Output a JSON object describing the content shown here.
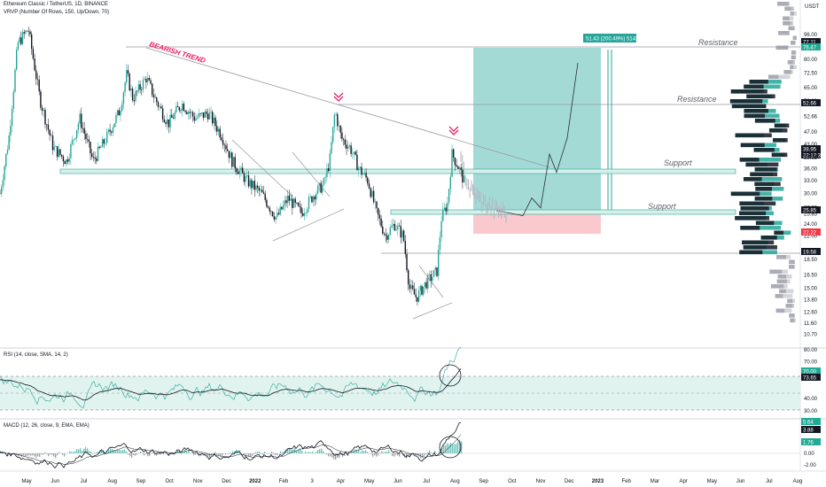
{
  "header": {
    "symbol": "Ethereum Classic / TetherUS, 1D, BINANCE",
    "vrvp": "VRVP (Number Of Rows, 150, Up/Down, 70)",
    "rsi": "RSI (14, close, SMA, 14, 2)",
    "macd": "MACD (12, 26, close, 9, EMA, EMA)",
    "currency": "USDT"
  },
  "chart_data": [
    {
      "type": "candlestick",
      "pane": "price",
      "scale": "log",
      "ylim": [
        10.0,
        110
      ],
      "x_ticks": [
        "May",
        "Jun",
        "Jul",
        "Aug",
        "Sep",
        "Oct",
        "Nov",
        "Dec",
        "2022",
        "Feb",
        "3",
        "Apr",
        "May",
        "Jun",
        "Jul",
        "Aug",
        "Sep",
        "Oct",
        "Nov",
        "Dec",
        "2023",
        "Feb",
        "Mar",
        "Apr",
        "May",
        "Jun",
        "Jul",
        "Aug"
      ],
      "y_ticks": [
        "96.00",
        "88.00",
        "80.00",
        "72.50",
        "65.00",
        "59.00",
        "52.66",
        "47.00",
        "43.00",
        "38.95",
        "36.00",
        "33.00",
        "30.00",
        "27.00",
        "25.85",
        "24.00",
        "22.00",
        "19.58",
        "18.50",
        "16.50",
        "15.00",
        "13.80",
        "12.60",
        "11.60",
        "10.70"
      ],
      "series": [
        {
          "values": [
            [
              0,
              30
            ],
            [
              10,
              45
            ],
            [
              20,
              90
            ],
            [
              32,
              100
            ],
            [
              45,
              60
            ],
            [
              60,
              42
            ],
            [
              75,
              38
            ],
            [
              90,
              52
            ],
            [
              105,
              38
            ],
            [
              120,
              45
            ],
            [
              135,
              55
            ],
            [
              143,
              72
            ],
            [
              150,
              60
            ],
            [
              165,
              70
            ],
            [
              175,
              60
            ],
            [
              190,
              50
            ],
            [
              205,
              58
            ],
            [
              220,
              52
            ],
            [
              235,
              54
            ],
            [
              250,
              46
            ],
            [
              262,
              38
            ],
            [
              278,
              33
            ],
            [
              295,
              30
            ],
            [
              312,
              25
            ],
            [
              325,
              29
            ],
            [
              340,
              26
            ],
            [
              355,
              30
            ],
            [
              365,
              32
            ],
            [
              372,
              38
            ],
            [
              378,
              55
            ],
            [
              385,
              45
            ],
            [
              395,
              42
            ],
            [
              405,
              36
            ],
            [
              415,
              33
            ],
            [
              425,
              26
            ],
            [
              435,
              22
            ],
            [
              445,
              24
            ],
            [
              455,
              22
            ],
            [
              462,
              15
            ],
            [
              470,
              14
            ],
            [
              480,
              15.5
            ],
            [
              493,
              17
            ],
            [
              498,
              25
            ],
            [
              505,
              28
            ],
            [
              510,
              40
            ],
            [
              518,
              36
            ],
            [
              525,
              32
            ]
          ]
        },
        {
          "name": "projection",
          "values": [
            [
              520,
              38
            ],
            [
              530,
              31
            ],
            [
              545,
              28
            ],
            [
              560,
              26.5
            ],
            [
              575,
              26
            ],
            [
              590,
              25.5
            ],
            [
              600,
              29
            ],
            [
              610,
              27
            ],
            [
              620,
              40
            ],
            [
              628,
              35
            ],
            [
              640,
              45
            ],
            [
              652,
              78
            ]
          ]
        }
      ],
      "levels": [
        {
          "label": "Resistance",
          "value": 76.47
        },
        {
          "label": "Resistance",
          "value": 52.66
        },
        {
          "label": "Support",
          "value": 34.5
        },
        {
          "label": "Support",
          "value": 25.85
        }
      ],
      "annotations": [
        "BEARISH TREND",
        "51.43 (200.49%) 5142"
      ],
      "price_labels": [
        {
          "text": "77.11",
          "color": "#131722"
        },
        {
          "text": "76.47",
          "color": "#22ab94"
        },
        {
          "text": "52.66",
          "color": "#131722"
        },
        {
          "text": "38.95",
          "color": "#131722"
        },
        {
          "text": "22:17:31",
          "color": "#131722"
        },
        {
          "text": "25.85",
          "color": "#131722"
        },
        {
          "text": "22.22",
          "color": "#f23645"
        },
        {
          "text": "19.58",
          "color": "#131722"
        }
      ]
    },
    {
      "type": "line",
      "pane": "rsi",
      "ylim": [
        27,
        85
      ],
      "y_ticks": [
        "80.00",
        "70.00",
        "60.00",
        "40.00",
        "30.00"
      ],
      "band": [
        30,
        70
      ],
      "price_labels": [
        {
          "text": "70.00",
          "color": "#22ab94"
        },
        {
          "text": "73.65",
          "color": "#131722"
        }
      ]
    },
    {
      "type": "line",
      "pane": "macd",
      "y_ticks": [
        "2.00",
        "0.00",
        "-2.00"
      ],
      "price_labels": [
        {
          "text": "5.64",
          "color": "#22ab94"
        },
        {
          "text": "3.88",
          "color": "#131722"
        },
        {
          "text": "1.76",
          "color": "#22ab94"
        }
      ]
    }
  ],
  "colors": {
    "up": "#26a69a",
    "down": "#131722",
    "projection": "#b2b5be",
    "target": "#26a69a",
    "stop": "#ef9a9a",
    "bear": "#e91e63"
  }
}
